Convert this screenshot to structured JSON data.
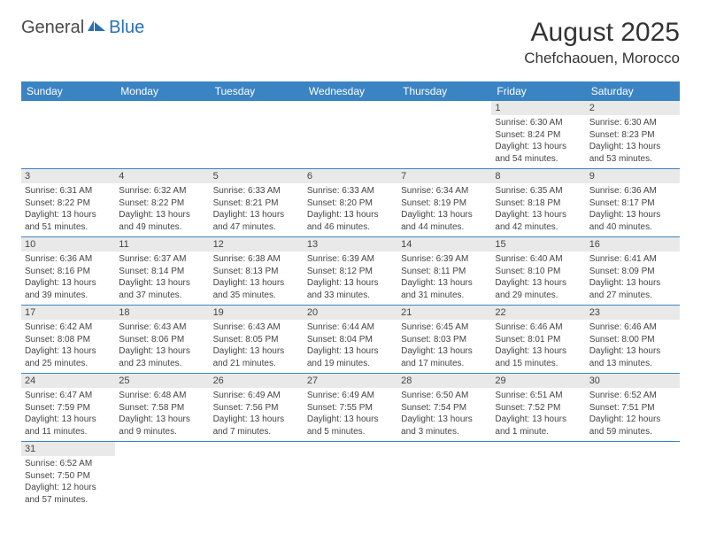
{
  "logo": {
    "part1": "General",
    "part2": "Blue"
  },
  "title": "August 2025",
  "location": "Chefchaouen, Morocco",
  "colors": {
    "header_bg": "#3b84c4",
    "header_text": "#ffffff",
    "daynum_bg": "#e9e9e9",
    "text": "#444444",
    "row_border": "#3b84c4",
    "logo_accent": "#2a6fb5"
  },
  "weekdays": [
    "Sunday",
    "Monday",
    "Tuesday",
    "Wednesday",
    "Thursday",
    "Friday",
    "Saturday"
  ],
  "weeks": [
    [
      {
        "empty": true
      },
      {
        "empty": true
      },
      {
        "empty": true
      },
      {
        "empty": true
      },
      {
        "empty": true
      },
      {
        "day": "1",
        "sunrise": "Sunrise: 6:30 AM",
        "sunset": "Sunset: 8:24 PM",
        "daylight": "Daylight: 13 hours and 54 minutes."
      },
      {
        "day": "2",
        "sunrise": "Sunrise: 6:30 AM",
        "sunset": "Sunset: 8:23 PM",
        "daylight": "Daylight: 13 hours and 53 minutes."
      }
    ],
    [
      {
        "day": "3",
        "sunrise": "Sunrise: 6:31 AM",
        "sunset": "Sunset: 8:22 PM",
        "daylight": "Daylight: 13 hours and 51 minutes."
      },
      {
        "day": "4",
        "sunrise": "Sunrise: 6:32 AM",
        "sunset": "Sunset: 8:22 PM",
        "daylight": "Daylight: 13 hours and 49 minutes."
      },
      {
        "day": "5",
        "sunrise": "Sunrise: 6:33 AM",
        "sunset": "Sunset: 8:21 PM",
        "daylight": "Daylight: 13 hours and 47 minutes."
      },
      {
        "day": "6",
        "sunrise": "Sunrise: 6:33 AM",
        "sunset": "Sunset: 8:20 PM",
        "daylight": "Daylight: 13 hours and 46 minutes."
      },
      {
        "day": "7",
        "sunrise": "Sunrise: 6:34 AM",
        "sunset": "Sunset: 8:19 PM",
        "daylight": "Daylight: 13 hours and 44 minutes."
      },
      {
        "day": "8",
        "sunrise": "Sunrise: 6:35 AM",
        "sunset": "Sunset: 8:18 PM",
        "daylight": "Daylight: 13 hours and 42 minutes."
      },
      {
        "day": "9",
        "sunrise": "Sunrise: 6:36 AM",
        "sunset": "Sunset: 8:17 PM",
        "daylight": "Daylight: 13 hours and 40 minutes."
      }
    ],
    [
      {
        "day": "10",
        "sunrise": "Sunrise: 6:36 AM",
        "sunset": "Sunset: 8:16 PM",
        "daylight": "Daylight: 13 hours and 39 minutes."
      },
      {
        "day": "11",
        "sunrise": "Sunrise: 6:37 AM",
        "sunset": "Sunset: 8:14 PM",
        "daylight": "Daylight: 13 hours and 37 minutes."
      },
      {
        "day": "12",
        "sunrise": "Sunrise: 6:38 AM",
        "sunset": "Sunset: 8:13 PM",
        "daylight": "Daylight: 13 hours and 35 minutes."
      },
      {
        "day": "13",
        "sunrise": "Sunrise: 6:39 AM",
        "sunset": "Sunset: 8:12 PM",
        "daylight": "Daylight: 13 hours and 33 minutes."
      },
      {
        "day": "14",
        "sunrise": "Sunrise: 6:39 AM",
        "sunset": "Sunset: 8:11 PM",
        "daylight": "Daylight: 13 hours and 31 minutes."
      },
      {
        "day": "15",
        "sunrise": "Sunrise: 6:40 AM",
        "sunset": "Sunset: 8:10 PM",
        "daylight": "Daylight: 13 hours and 29 minutes."
      },
      {
        "day": "16",
        "sunrise": "Sunrise: 6:41 AM",
        "sunset": "Sunset: 8:09 PM",
        "daylight": "Daylight: 13 hours and 27 minutes."
      }
    ],
    [
      {
        "day": "17",
        "sunrise": "Sunrise: 6:42 AM",
        "sunset": "Sunset: 8:08 PM",
        "daylight": "Daylight: 13 hours and 25 minutes."
      },
      {
        "day": "18",
        "sunrise": "Sunrise: 6:43 AM",
        "sunset": "Sunset: 8:06 PM",
        "daylight": "Daylight: 13 hours and 23 minutes."
      },
      {
        "day": "19",
        "sunrise": "Sunrise: 6:43 AM",
        "sunset": "Sunset: 8:05 PM",
        "daylight": "Daylight: 13 hours and 21 minutes."
      },
      {
        "day": "20",
        "sunrise": "Sunrise: 6:44 AM",
        "sunset": "Sunset: 8:04 PM",
        "daylight": "Daylight: 13 hours and 19 minutes."
      },
      {
        "day": "21",
        "sunrise": "Sunrise: 6:45 AM",
        "sunset": "Sunset: 8:03 PM",
        "daylight": "Daylight: 13 hours and 17 minutes."
      },
      {
        "day": "22",
        "sunrise": "Sunrise: 6:46 AM",
        "sunset": "Sunset: 8:01 PM",
        "daylight": "Daylight: 13 hours and 15 minutes."
      },
      {
        "day": "23",
        "sunrise": "Sunrise: 6:46 AM",
        "sunset": "Sunset: 8:00 PM",
        "daylight": "Daylight: 13 hours and 13 minutes."
      }
    ],
    [
      {
        "day": "24",
        "sunrise": "Sunrise: 6:47 AM",
        "sunset": "Sunset: 7:59 PM",
        "daylight": "Daylight: 13 hours and 11 minutes."
      },
      {
        "day": "25",
        "sunrise": "Sunrise: 6:48 AM",
        "sunset": "Sunset: 7:58 PM",
        "daylight": "Daylight: 13 hours and 9 minutes."
      },
      {
        "day": "26",
        "sunrise": "Sunrise: 6:49 AM",
        "sunset": "Sunset: 7:56 PM",
        "daylight": "Daylight: 13 hours and 7 minutes."
      },
      {
        "day": "27",
        "sunrise": "Sunrise: 6:49 AM",
        "sunset": "Sunset: 7:55 PM",
        "daylight": "Daylight: 13 hours and 5 minutes."
      },
      {
        "day": "28",
        "sunrise": "Sunrise: 6:50 AM",
        "sunset": "Sunset: 7:54 PM",
        "daylight": "Daylight: 13 hours and 3 minutes."
      },
      {
        "day": "29",
        "sunrise": "Sunrise: 6:51 AM",
        "sunset": "Sunset: 7:52 PM",
        "daylight": "Daylight: 13 hours and 1 minute."
      },
      {
        "day": "30",
        "sunrise": "Sunrise: 6:52 AM",
        "sunset": "Sunset: 7:51 PM",
        "daylight": "Daylight: 12 hours and 59 minutes."
      }
    ],
    [
      {
        "day": "31",
        "sunrise": "Sunrise: 6:52 AM",
        "sunset": "Sunset: 7:50 PM",
        "daylight": "Daylight: 12 hours and 57 minutes."
      },
      {
        "empty": true
      },
      {
        "empty": true
      },
      {
        "empty": true
      },
      {
        "empty": true
      },
      {
        "empty": true
      },
      {
        "empty": true
      }
    ]
  ]
}
